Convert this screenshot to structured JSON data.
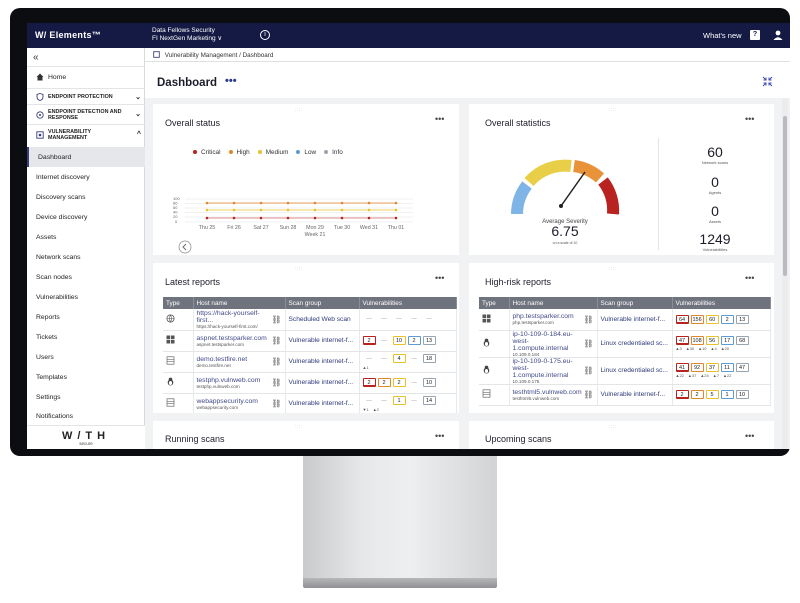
{
  "topbar": {
    "logo": "W/ Elements™",
    "org_line1": "Data Fellows Security",
    "org_line2": "FI NextGen Marketing ∨",
    "whats_new": "What's new"
  },
  "sidebar": {
    "items": [
      {
        "label": "Home"
      },
      {
        "label": "ENDPOINT PROTECTION"
      },
      {
        "label": "ENDPOINT DETECTION AND RESPONSE"
      },
      {
        "label": "VULNERABILITY MANAGEMENT"
      },
      {
        "label": "Dashboard"
      },
      {
        "label": "Internet discovery"
      },
      {
        "label": "Discovery scans"
      },
      {
        "label": "Device discovery"
      },
      {
        "label": "Assets"
      },
      {
        "label": "Network scans"
      },
      {
        "label": "Scan nodes"
      },
      {
        "label": "Vulnerabilities"
      },
      {
        "label": "Reports"
      },
      {
        "label": "Tickets"
      },
      {
        "label": "Users"
      },
      {
        "label": "Templates"
      },
      {
        "label": "Settings"
      },
      {
        "label": "Notifications"
      }
    ],
    "brand": "W/TH",
    "brand_sub": "secure"
  },
  "breadcrumb": "Vulnerability Management / Dashboard",
  "page_title": "Dashboard",
  "overall_status": {
    "title": "Overall status",
    "legend": [
      {
        "label": "Critical",
        "color": "#b8221f"
      },
      {
        "label": "High",
        "color": "#e0862c"
      },
      {
        "label": "Medium",
        "color": "#e8c22c"
      },
      {
        "label": "Low",
        "color": "#5d9bd4"
      },
      {
        "label": "Info",
        "color": "#9aa3b0"
      }
    ],
    "y_ticks": [
      "100",
      "80",
      "60",
      "40",
      "20",
      "0"
    ],
    "x_labels": [
      "Thu 25",
      "Fri 26",
      "Sat 27",
      "Sun 28",
      "Mon 29",
      "Tue 30",
      "Wed 31",
      "Thu 01"
    ],
    "week": "Week 21"
  },
  "overall_statistics": {
    "title": "Overall statistics",
    "gauge_label": "Average Severity",
    "gauge_value": "6.75",
    "gauge_scale": "on a scale of 10",
    "stats": [
      {
        "value": "60",
        "label": "Network scans"
      },
      {
        "value": "0",
        "label": "Agents"
      },
      {
        "value": "0",
        "label": "Assets"
      },
      {
        "value": "1249",
        "label": "Vulnerabilities"
      }
    ]
  },
  "latest_reports": {
    "title": "Latest reports",
    "columns": [
      "Type",
      "Host name",
      "Scan group",
      "Vulnerabilities"
    ],
    "rows": [
      {
        "type": "globe",
        "host": "https://hack-yourself-first...",
        "host_sub": "https://hack-yourself-first.com/",
        "group": "Scheduled Web scan",
        "vulns": [
          "",
          "",
          "",
          "",
          ""
        ],
        "trend": []
      },
      {
        "type": "windows",
        "host": "aspnet.testsparker.com",
        "host_sub": "aspnet.testsparker.com",
        "group": "Vulnerable internet-f...",
        "vulns": [
          "2",
          "",
          "10",
          "2",
          "13"
        ],
        "trend": []
      },
      {
        "type": "server",
        "host": "demo.testfire.net",
        "host_sub": "demo.testfire.net",
        "group": "Vulnerable internet-f...",
        "vulns": [
          "",
          "",
          "4",
          "",
          "18"
        ],
        "trend": [
          "▲1"
        ]
      },
      {
        "type": "linux",
        "host": "testphp.vulnweb.com",
        "host_sub": "testphp.vulnweb.com",
        "group": "Vulnerable internet-f...",
        "vulns": [
          "2",
          "2",
          "2",
          "",
          "10"
        ],
        "trend": []
      },
      {
        "type": "server",
        "host": "webappsecurity.com",
        "host_sub": "webappsecurity.com",
        "group": "Vulnerable internet-f...",
        "vulns": [
          "",
          "",
          "1",
          "",
          "14"
        ],
        "trend": [
          "▼1",
          "▲2"
        ]
      }
    ]
  },
  "high_risk_reports": {
    "title": "High-risk reports",
    "columns": [
      "Type",
      "Host name",
      "Scan group",
      "Vulnerabilities"
    ],
    "rows": [
      {
        "type": "windows",
        "host": "php.testsparker.com",
        "host_sub": "php.testsparker.com",
        "group": "Vulnerable internet-f...",
        "vulns": [
          "64",
          "156",
          "60",
          "2",
          "13"
        ],
        "trend": []
      },
      {
        "type": "linux",
        "host": "ip-10-109-0-184.eu-west-1.compute.internal",
        "host_sub": "10.109.0.184",
        "group": "Linux credentialed sc...",
        "vulns": [
          "47",
          "108",
          "56",
          "17",
          "68"
        ],
        "trend": [
          "▲3",
          "▲30",
          "▲10",
          "▲4",
          "▲20"
        ]
      },
      {
        "type": "linux",
        "host": "ip-10-109-0-175.eu-west-1.compute.internal",
        "host_sub": "10.109.0.175",
        "group": "Linux credentialed sc...",
        "vulns": [
          "41",
          "92",
          "37",
          "11",
          "47"
        ],
        "trend": [
          "▲22",
          "▲37",
          "▲24",
          "▲7",
          "▲22"
        ]
      },
      {
        "type": "server",
        "host": "testhtml5.vulnweb.com",
        "host_sub": "testhtml5.vulnweb.com",
        "group": "Vulnerable internet-f...",
        "vulns": [
          "2",
          "2",
          "5",
          "1",
          "10"
        ],
        "trend": []
      }
    ]
  },
  "running_scans": {
    "title": "Running scans"
  },
  "upcoming_scans": {
    "title": "Upcoming scans"
  },
  "colors": {
    "topbar": "#141a44",
    "critical": "#b8221f",
    "high": "#e0862c",
    "medium": "#e8c22c",
    "low": "#5d9bd4",
    "info": "#9aa3b0"
  }
}
